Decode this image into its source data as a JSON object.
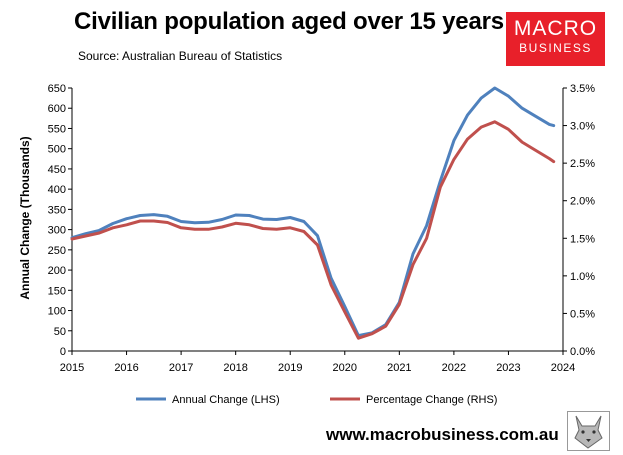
{
  "header": {
    "title": "Civilian population aged over 15 years",
    "source": "Source: Australian Bureau of Statistics"
  },
  "logo": {
    "line1": "MACRO",
    "line2": "BUSINESS"
  },
  "footer": {
    "url": "www.macrobusiness.com.au"
  },
  "colors": {
    "annual": "#4f81bd",
    "percent": "#c0504d",
    "brand": "#e8202a"
  },
  "chart_data": {
    "type": "line",
    "ylabel": "Annual Change (Thousands)",
    "x_ticks": [
      "2015",
      "2016",
      "2017",
      "2018",
      "2019",
      "2020",
      "2021",
      "2022",
      "2023",
      "2024"
    ],
    "xlim": [
      2015,
      2024
    ],
    "ylim_left": [
      0,
      650
    ],
    "left_ticks": [
      "0",
      "50",
      "100",
      "150",
      "200",
      "250",
      "300",
      "350",
      "400",
      "450",
      "500",
      "550",
      "600",
      "650"
    ],
    "ylim_right": [
      0,
      3.5
    ],
    "right_ticks": [
      "0.0%",
      "0.5%",
      "1.0%",
      "1.5%",
      "2.0%",
      "2.5%",
      "3.0%",
      "3.5%"
    ],
    "legend_position": "bottom",
    "series": [
      {
        "name": "Annual Change (LHS)",
        "axis": "left",
        "x": [
          2015.0,
          2015.25,
          2015.5,
          2015.75,
          2016.0,
          2016.25,
          2016.5,
          2016.75,
          2017.0,
          2017.25,
          2017.5,
          2017.75,
          2018.0,
          2018.25,
          2018.5,
          2018.75,
          2019.0,
          2019.25,
          2019.5,
          2019.75,
          2020.0,
          2020.25,
          2020.5,
          2020.75,
          2021.0,
          2021.25,
          2021.5,
          2021.75,
          2022.0,
          2022.25,
          2022.5,
          2022.75,
          2023.0,
          2023.25,
          2023.5,
          2023.75,
          2023.83
        ],
        "values": [
          280,
          290,
          298,
          315,
          327,
          335,
          337,
          333,
          320,
          317,
          318,
          325,
          336,
          335,
          326,
          325,
          330,
          320,
          285,
          180,
          110,
          38,
          45,
          65,
          120,
          240,
          310,
          420,
          520,
          583,
          625,
          650,
          630,
          600,
          580,
          560,
          557
        ]
      },
      {
        "name": "Percentage Change (RHS)",
        "axis": "right",
        "x": [
          2015.0,
          2015.25,
          2015.5,
          2015.75,
          2016.0,
          2016.25,
          2016.5,
          2016.75,
          2017.0,
          2017.25,
          2017.5,
          2017.75,
          2018.0,
          2018.25,
          2018.5,
          2018.75,
          2019.0,
          2019.25,
          2019.5,
          2019.75,
          2020.0,
          2020.25,
          2020.5,
          2020.75,
          2021.0,
          2021.25,
          2021.5,
          2021.75,
          2022.0,
          2022.25,
          2022.5,
          2022.75,
          2023.0,
          2023.25,
          2023.5,
          2023.75,
          2023.83
        ],
        "values": [
          1.49,
          1.53,
          1.57,
          1.64,
          1.68,
          1.73,
          1.73,
          1.71,
          1.64,
          1.62,
          1.62,
          1.65,
          1.7,
          1.68,
          1.63,
          1.62,
          1.64,
          1.59,
          1.41,
          0.88,
          0.52,
          0.17,
          0.23,
          0.33,
          0.62,
          1.15,
          1.5,
          2.18,
          2.55,
          2.82,
          2.98,
          3.05,
          2.95,
          2.78,
          2.67,
          2.56,
          2.52
        ]
      }
    ]
  }
}
